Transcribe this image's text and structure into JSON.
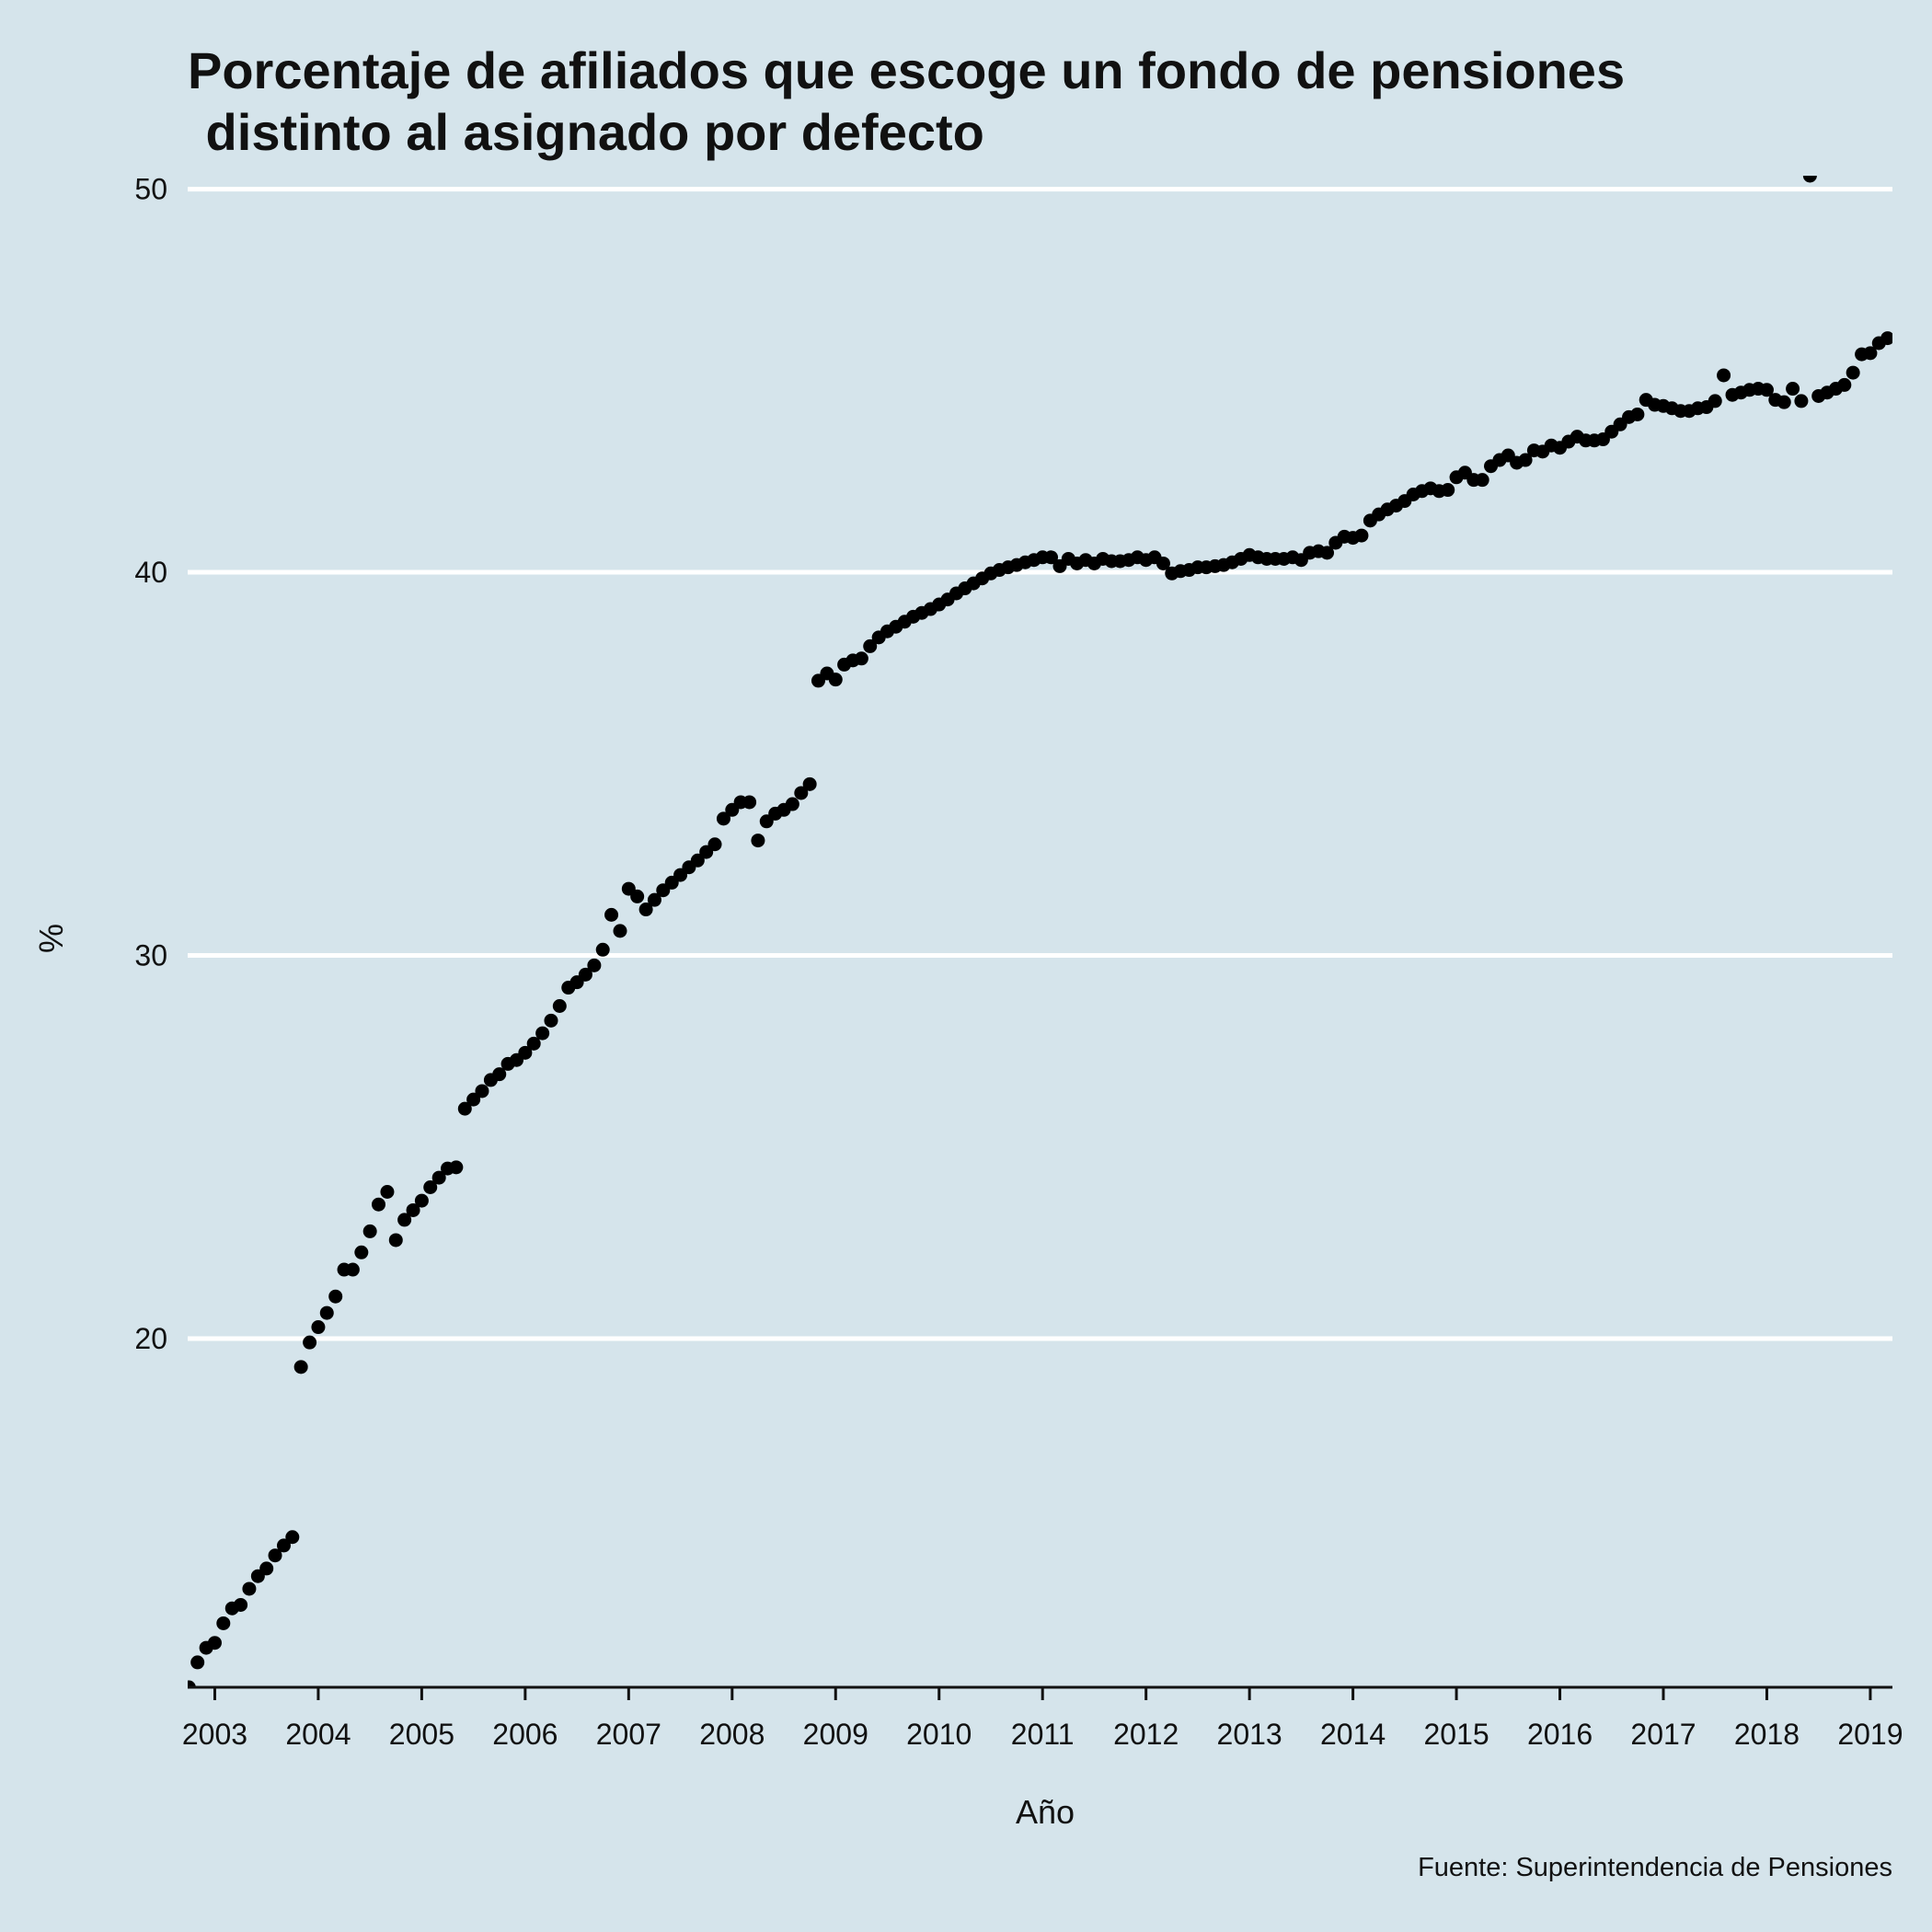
{
  "chart_data": {
    "type": "scatter",
    "title": [
      "Porcentaje de afiliados que escoge un fondo de pensiones",
      " distinto al asignado por defecto"
    ],
    "x_label": "Año",
    "y_label": "%",
    "caption": "Fuente: Superintendencia de Pensiones",
    "color": "#000000",
    "grid": true,
    "xlim": [
      2002.738,
      2019.214
    ],
    "ylim": [
      10.9,
      50.35
    ],
    "xticks": [
      2003,
      2004,
      2005,
      2006,
      2007,
      2008,
      2009,
      2010,
      2011,
      2012,
      2013,
      2014,
      2015,
      2016,
      2017,
      2018,
      2019
    ],
    "yticks": [
      20,
      30,
      40,
      50
    ],
    "x": [
      2002.75,
      2002.833,
      2002.917,
      2003,
      2003.083,
      2003.167,
      2003.25,
      2003.333,
      2003.417,
      2003.5,
      2003.583,
      2003.667,
      2003.75,
      2003.833,
      2003.917,
      2004,
      2004.083,
      2004.167,
      2004.25,
      2004.333,
      2004.417,
      2004.5,
      2004.583,
      2004.667,
      2004.75,
      2004.833,
      2004.917,
      2005,
      2005.083,
      2005.167,
      2005.25,
      2005.333,
      2005.417,
      2005.5,
      2005.583,
      2005.667,
      2005.75,
      2005.833,
      2005.917,
      2006,
      2006.083,
      2006.167,
      2006.25,
      2006.333,
      2006.417,
      2006.5,
      2006.583,
      2006.667,
      2006.75,
      2006.833,
      2006.917,
      2007,
      2007.083,
      2007.167,
      2007.25,
      2007.333,
      2007.417,
      2007.5,
      2007.583,
      2007.667,
      2007.75,
      2007.833,
      2007.917,
      2008,
      2008.083,
      2008.167,
      2008.25,
      2008.333,
      2008.417,
      2008.5,
      2008.583,
      2008.667,
      2008.75,
      2008.833,
      2008.917,
      2009,
      2009.083,
      2009.167,
      2009.25,
      2009.333,
      2009.417,
      2009.5,
      2009.583,
      2009.667,
      2009.75,
      2009.833,
      2009.917,
      2010,
      2010.083,
      2010.167,
      2010.25,
      2010.333,
      2010.417,
      2010.5,
      2010.583,
      2010.667,
      2010.75,
      2010.833,
      2010.917,
      2011,
      2011.083,
      2011.167,
      2011.25,
      2011.333,
      2011.417,
      2011.5,
      2011.583,
      2011.667,
      2011.75,
      2011.833,
      2011.917,
      2012,
      2012.083,
      2012.167,
      2012.25,
      2012.333,
      2012.417,
      2012.5,
      2012.583,
      2012.667,
      2012.75,
      2012.833,
      2012.917,
      2013,
      2013.083,
      2013.167,
      2013.25,
      2013.333,
      2013.417,
      2013.5,
      2013.583,
      2013.667,
      2013.75,
      2013.833,
      2013.917,
      2014,
      2014.083,
      2014.167,
      2014.25,
      2014.333,
      2014.417,
      2014.5,
      2014.583,
      2014.667,
      2014.75,
      2014.833,
      2014.917,
      2015,
      2015.083,
      2015.167,
      2015.25,
      2015.333,
      2015.417,
      2015.5,
      2015.583,
      2015.667,
      2015.75,
      2015.833,
      2015.917,
      2016,
      2016.083,
      2016.167,
      2016.25,
      2016.333,
      2016.417,
      2016.5,
      2016.583,
      2016.667,
      2016.75,
      2016.833,
      2016.917,
      2017,
      2017.083,
      2017.167,
      2017.25,
      2017.333,
      2017.417,
      2017.5,
      2017.583,
      2017.667,
      2017.75,
      2017.833,
      2017.917,
      2018,
      2018.083,
      2018.167,
      2018.25,
      2018.333,
      2018.417,
      2018.5,
      2018.583,
      2018.667,
      2018.75,
      2018.833,
      2018.917,
      2019,
      2019.083,
      2019.167
    ],
    "values": [
      10.9,
      11.55,
      11.93,
      12.06,
      12.57,
      12.96,
      13.05,
      13.47,
      13.8,
      14.0,
      14.34,
      14.6,
      14.82,
      19.26,
      19.9,
      20.3,
      20.67,
      21.1,
      21.8,
      21.8,
      22.25,
      22.8,
      23.5,
      23.83,
      22.57,
      23.1,
      23.35,
      23.6,
      23.95,
      24.2,
      24.44,
      24.47,
      26.0,
      26.24,
      26.46,
      26.75,
      26.9,
      27.17,
      27.27,
      27.46,
      27.7,
      27.97,
      28.3,
      28.68,
      29.16,
      29.3,
      29.5,
      29.74,
      30.15,
      31.06,
      30.64,
      31.74,
      31.54,
      31.2,
      31.45,
      31.7,
      31.9,
      32.1,
      32.3,
      32.48,
      32.7,
      32.9,
      33.57,
      33.8,
      34.0,
      34.0,
      33.0,
      33.5,
      33.7,
      33.8,
      33.95,
      34.24,
      34.47,
      37.17,
      37.36,
      37.2,
      37.59,
      37.7,
      37.75,
      38.07,
      38.3,
      38.46,
      38.58,
      38.71,
      38.84,
      38.94,
      39.04,
      39.16,
      39.29,
      39.45,
      39.58,
      39.71,
      39.84,
      39.97,
      40.06,
      40.13,
      40.19,
      40.26,
      40.32,
      40.39,
      40.39,
      40.16,
      40.35,
      40.23,
      40.32,
      40.23,
      40.35,
      40.29,
      40.29,
      40.32,
      40.39,
      40.32,
      40.39,
      40.23,
      39.97,
      40.03,
      40.06,
      40.13,
      40.13,
      40.16,
      40.19,
      40.26,
      40.35,
      40.45,
      40.39,
      40.35,
      40.35,
      40.35,
      40.39,
      40.32,
      40.51,
      40.55,
      40.51,
      40.77,
      40.93,
      40.9,
      40.96,
      41.35,
      41.51,
      41.64,
      41.74,
      41.86,
      42.03,
      42.12,
      42.19,
      42.12,
      42.15,
      42.48,
      42.6,
      42.41,
      42.41,
      42.77,
      42.93,
      43.05,
      42.86,
      42.93,
      43.18,
      43.15,
      43.31,
      43.25,
      43.41,
      43.54,
      43.44,
      43.44,
      43.47,
      43.67,
      43.86,
      44.05,
      44.12,
      44.5,
      44.37,
      44.34,
      44.28,
      44.21,
      44.21,
      44.28,
      44.31,
      44.47,
      45.14,
      44.63,
      44.69,
      44.76,
      44.79,
      44.76,
      44.5,
      44.44,
      44.79,
      44.47,
      50.35,
      44.6,
      44.69,
      44.79,
      44.89,
      45.21,
      45.69,
      45.72,
      45.98,
      46.11
    ]
  }
}
